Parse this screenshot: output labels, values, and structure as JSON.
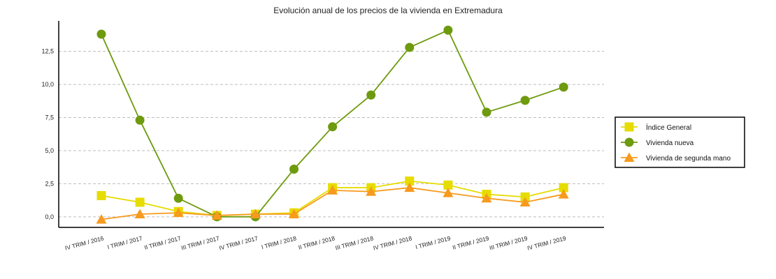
{
  "chart_data": {
    "type": "line",
    "title": "Evolución anual de los precios de la vivienda en Extremadura",
    "xlabel": "",
    "ylabel": "",
    "ylim": [
      -0.8,
      14.8
    ],
    "yticks": [
      "0,0",
      "2,5",
      "5,0",
      "7,5",
      "10,0",
      "12,5"
    ],
    "ytick_values": [
      0,
      2.5,
      5,
      7.5,
      10,
      12.5
    ],
    "grid": "horizontal-dashed",
    "legend_position": "right",
    "categories": [
      "IV TRIM / 2016",
      "I TRIM / 2017",
      "II TRIM / 2017",
      "III TRIM / 2017",
      "IV TRIM / 2017",
      "I TRIM / 2018",
      "II TRIM / 2018",
      "III TRIM / 2018",
      "IV TRIM / 2018",
      "I TRIM / 2019",
      "II TRIM / 2019",
      "III TRIM / 2019",
      "IV TRIM / 2019"
    ],
    "series": [
      {
        "name": "Índice General",
        "color": "#e6dc00",
        "marker": "square",
        "values": [
          1.6,
          1.1,
          0.4,
          0.1,
          0.2,
          0.3,
          2.2,
          2.2,
          2.7,
          2.4,
          1.7,
          1.5,
          2.2
        ]
      },
      {
        "name": "Vivienda nueva",
        "color": "#6e9a0e",
        "marker": "circle",
        "values": [
          13.8,
          7.3,
          1.4,
          0.0,
          0.0,
          3.6,
          6.8,
          9.2,
          12.8,
          14.1,
          7.9,
          8.8,
          9.8
        ]
      },
      {
        "name": "Vivienda de segunda mano",
        "color": "#f79a1e",
        "marker": "triangle",
        "values": [
          -0.2,
          0.2,
          0.3,
          0.1,
          0.2,
          0.2,
          2.0,
          1.9,
          2.2,
          1.8,
          1.4,
          1.1,
          1.7
        ]
      }
    ]
  }
}
